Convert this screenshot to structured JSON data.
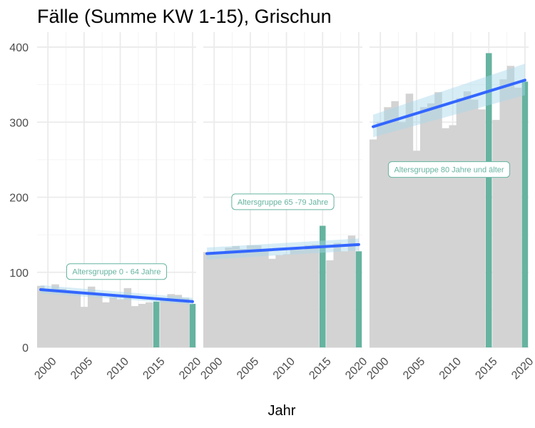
{
  "chart_data": {
    "type": "bar",
    "title": "Fälle (Summe KW 1-15), Grischun",
    "xlabel": "Jahr",
    "ylabel": "",
    "ylim": [
      0,
      420
    ],
    "xlim": [
      1998.5,
      2020.5
    ],
    "yticks": [
      0,
      100,
      200,
      300,
      400
    ],
    "xticks": [
      2000,
      2005,
      2010,
      2015,
      2020
    ],
    "grid": true,
    "legend": "none",
    "colors": {
      "bar": "#d3d3d3",
      "highlight": "#66b3a0",
      "trend": "#3366ff",
      "ribbon": "#a6d8ea",
      "label_border": "#66b3a0",
      "label_text": "#66b3a0",
      "grid_major": "#ebebeb",
      "grid_minor": "#f4f4f4"
    },
    "highlight_years": [
      2015,
      2020
    ],
    "facets": [
      {
        "label": "Altersgruppe 0 - 64 Jahre",
        "label_pos": [
          2009.5,
          101
        ],
        "x": [
          1999,
          2000,
          2001,
          2002,
          2003,
          2004,
          2005,
          2006,
          2007,
          2008,
          2009,
          2010,
          2011,
          2012,
          2013,
          2014,
          2015,
          2016,
          2017,
          2018,
          2019,
          2020
        ],
        "values": [
          82,
          77,
          84,
          78,
          75,
          72,
          54,
          81,
          72,
          60,
          67,
          64,
          79,
          55,
          58,
          60,
          61,
          63,
          71,
          70,
          66,
          58
        ],
        "trend": [
          77,
          61
        ],
        "ribbon_low": [
          72,
          57
        ],
        "ribbon_high": [
          83,
          66
        ]
      },
      {
        "label": "Altersgruppe 65 -79 Jahre",
        "label_pos": [
          2009.5,
          194
        ],
        "x": [
          1999,
          2000,
          2001,
          2002,
          2003,
          2004,
          2005,
          2006,
          2007,
          2008,
          2009,
          2010,
          2011,
          2012,
          2013,
          2014,
          2015,
          2016,
          2017,
          2018,
          2019,
          2020
        ],
        "values": [
          127,
          126,
          126,
          133,
          135,
          131,
          136,
          136,
          130,
          118,
          123,
          124,
          130,
          130,
          136,
          137,
          162,
          116,
          139,
          128,
          149,
          128
        ],
        "trend": [
          125,
          137
        ],
        "ribbon_low": [
          117,
          129
        ],
        "ribbon_high": [
          133,
          145
        ]
      },
      {
        "label": "Altersgruppe 80 Jahre und älter",
        "label_pos": [
          2009.5,
          237
        ],
        "x": [
          1999,
          2000,
          2001,
          2002,
          2003,
          2004,
          2005,
          2006,
          2007,
          2008,
          2009,
          2010,
          2011,
          2012,
          2013,
          2014,
          2015,
          2016,
          2017,
          2018,
          2019,
          2020
        ],
        "values": [
          277,
          300,
          320,
          328,
          300,
          338,
          262,
          320,
          325,
          340,
          292,
          296,
          332,
          341,
          330,
          317,
          392,
          303,
          357,
          375,
          346,
          354
        ],
        "trend": [
          294,
          356
        ],
        "ribbon_low": [
          280,
          336
        ],
        "ribbon_high": [
          310,
          378
        ]
      }
    ]
  }
}
